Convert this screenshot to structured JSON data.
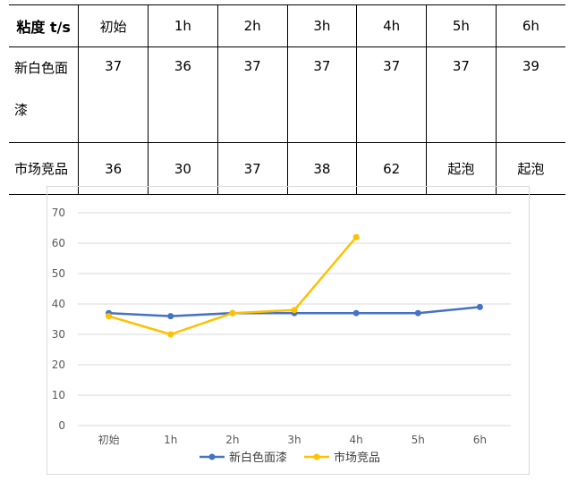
{
  "table": {
    "headers": [
      "粘度 t/s",
      "初始",
      "1h",
      "2h",
      "3h",
      "4h",
      "5h",
      "6h"
    ],
    "rows": [
      {
        "label_line1": "新白色面",
        "label_line2": "漆",
        "cells": [
          "37",
          "36",
          "37",
          "37",
          "37",
          "37",
          "39"
        ]
      },
      {
        "label": "市场竞品",
        "cells": [
          "36",
          "30",
          "37",
          "38",
          "62",
          "起泡",
          "起泡"
        ]
      }
    ]
  },
  "chart_data": {
    "type": "line",
    "categories": [
      "初始",
      "1h",
      "2h",
      "3h",
      "4h",
      "5h",
      "6h"
    ],
    "y_ticks": [
      "0",
      "10",
      "20",
      "30",
      "40",
      "50",
      "60",
      "70"
    ],
    "ylim": [
      0,
      70
    ],
    "grid": true,
    "legend_position": "bottom",
    "series": [
      {
        "name": "新白色面漆",
        "color": "#4472c4",
        "values": [
          37,
          36,
          37,
          37,
          37,
          37,
          39
        ]
      },
      {
        "name": "市场竞品",
        "color": "#ffc000",
        "values": [
          36,
          30,
          37,
          38,
          62,
          null,
          null
        ]
      }
    ]
  }
}
